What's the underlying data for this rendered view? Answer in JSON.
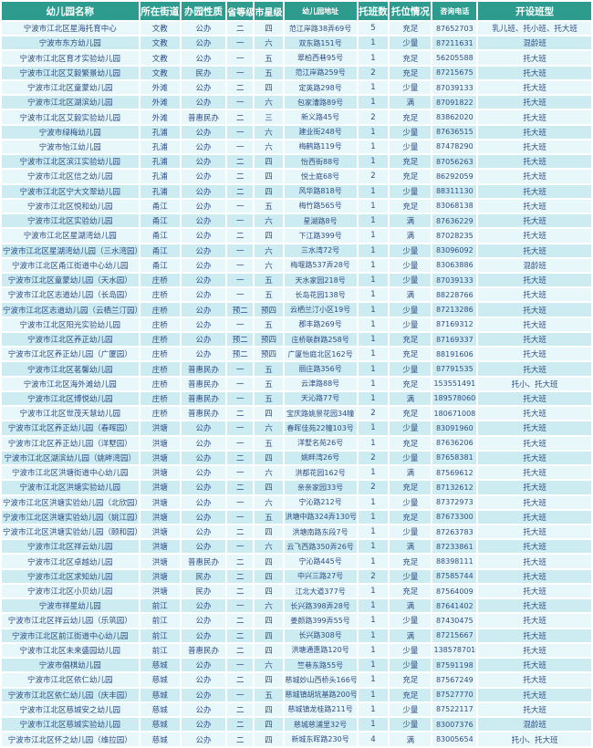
{
  "colors": {
    "header_bg": "#2D9C8E",
    "header_text": "#FFFFFF",
    "row_light": "#E8F7F9",
    "row_dark": "#CDECF1",
    "cell_text": "#2E4E86",
    "grid": "#FFFFFF"
  },
  "table": {
    "columns": [
      {
        "key": "name",
        "label": "幼儿园名称"
      },
      {
        "key": "street",
        "label": "所在街道"
      },
      {
        "key": "type",
        "label": "办园性质"
      },
      {
        "key": "province_grade",
        "label": "省等级"
      },
      {
        "key": "city_star",
        "label": "市星级"
      },
      {
        "key": "address",
        "label": "幼儿园地址"
      },
      {
        "key": "nursery_classes",
        "label": "托班数"
      },
      {
        "key": "slot_status",
        "label": "托位情况"
      },
      {
        "key": "phone",
        "label": "咨询电话"
      },
      {
        "key": "class_types",
        "label": "开设班型"
      }
    ],
    "rows": [
      [
        "宁波市江北区星海托育中心",
        "文教",
        "公办",
        "二",
        "四",
        "范江岸路38弄69号",
        "5",
        "充足",
        "87652703",
        "乳儿班、托小班、托大班"
      ],
      [
        "宁波市东方幼儿园",
        "文教",
        "公办",
        "一",
        "六",
        "双东路151号",
        "1",
        "少量",
        "87211631",
        "混龄班"
      ],
      [
        "宁波市江北区育才实验幼儿园",
        "文教",
        "公办",
        "一",
        "五",
        "翠柏西巷95号",
        "1",
        "充足",
        "56205588",
        "托大班"
      ],
      [
        "宁波市江北区艾毅繁景幼儿园",
        "文教",
        "民办",
        "一",
        "五",
        "范江岸路259号",
        "2",
        "充足",
        "87215675",
        "托大班"
      ],
      [
        "宁波市江北区童蒙幼儿园",
        "外滩",
        "公办",
        "二",
        "四",
        "定英路298号",
        "1",
        "少量",
        "87039133",
        "托大班"
      ],
      [
        "宁波市江北区湖滨幼儿园",
        "外滩",
        "公办",
        "一",
        "六",
        "包家漕路89号",
        "1",
        "满",
        "87091822",
        "托大班"
      ],
      [
        "宁波市江北区艾毅实验幼儿园",
        "外滩",
        "普惠民办",
        "二",
        "三",
        "新义路45号",
        "2",
        "充足",
        "83862020",
        "托大班"
      ],
      [
        "宁波市绿梅幼儿园",
        "孔浦",
        "公办",
        "一",
        "六",
        "建业街248号",
        "1",
        "少量",
        "87636515",
        "托大班"
      ],
      [
        "宁波市怡江幼儿园",
        "孔浦",
        "公办",
        "一",
        "六",
        "梅鹤路119号",
        "1",
        "少量",
        "87478290",
        "托大班"
      ],
      [
        "宁波市江北区滨江实验幼儿园",
        "孔浦",
        "公办",
        "二",
        "四",
        "怡西街88号",
        "1",
        "充足",
        "87056263",
        "托大班"
      ],
      [
        "宁波市江北区信之幼儿园",
        "孔浦",
        "公办",
        "二",
        "四",
        "悦士庭68号",
        "2",
        "充足",
        "86292059",
        "托大班"
      ],
      [
        "宁波市江北区宁大文翠幼儿园",
        "孔浦",
        "公办",
        "二",
        "四",
        "风华路818号",
        "1",
        "少量",
        "88311130",
        "托大班"
      ],
      [
        "宁波市江北区悦和幼儿园",
        "甬江",
        "公办",
        "一",
        "五",
        "梅竹路565号",
        "1",
        "充足",
        "83068138",
        "托大班"
      ],
      [
        "宁波市江北区实验幼儿园",
        "甬江",
        "公办",
        "一",
        "六",
        "星湖路8号",
        "1",
        "满",
        "87636229",
        "托大班"
      ],
      [
        "宁波市江北区星湖湾幼儿园",
        "甬江",
        "公办",
        "二",
        "四",
        "下江路399号",
        "1",
        "满",
        "87028235",
        "托大班"
      ],
      [
        "宁波市江北区星湖湾幼儿园（三水湾园）",
        "甬江",
        "公办",
        "一",
        "六",
        "三水湾72号",
        "1",
        "少量",
        "83096092",
        "托大班"
      ],
      [
        "宁波市江北区甬江街道中心幼儿园",
        "甬江",
        "公办",
        "一",
        "六",
        "梅堰路537弄28号",
        "1",
        "少量",
        "83063886",
        "混龄班"
      ],
      [
        "宁波市江北区童蒙幼儿园（天水园）",
        "庄桥",
        "公办",
        "一",
        "五",
        "天水家园218号",
        "1",
        "少量",
        "87039133",
        "托大班"
      ],
      [
        "宁波市江北区志道幼儿园（长岛园）",
        "庄桥",
        "公办",
        "一",
        "五",
        "长岛花园138号",
        "1",
        "满",
        "88228766",
        "托大班"
      ],
      [
        "宁波市江北区志道幼儿园（云栖兰汀园）",
        "庄桥",
        "公办",
        "预二",
        "预四",
        "云栖兰汀小区19号",
        "1",
        "少量",
        "87213286",
        "托大班"
      ],
      [
        "宁波市江北区阳光实验幼儿园",
        "庄桥",
        "公办",
        "一",
        "五",
        "郡丰路269号",
        "1",
        "少量",
        "87169312",
        "托大班"
      ],
      [
        "宁波市江北区养正幼儿园",
        "庄桥",
        "公办",
        "预二",
        "预四",
        "庄桥联群路258号",
        "1",
        "充足",
        "87169337",
        "托大班"
      ],
      [
        "宁波市江北区养正幼儿园（广厦园）",
        "庄桥",
        "公办",
        "预二",
        "预四",
        "广厦怡庭北区162号",
        "1",
        "充足",
        "88191606",
        "托大班"
      ],
      [
        "宁波市江北区茗馨幼儿园",
        "庄桥",
        "普惠民办",
        "一",
        "五",
        "丽庄路356号",
        "1",
        "少量",
        "87791535",
        "托大班"
      ],
      [
        "宁波市江北区海外滩幼儿园",
        "庄桥",
        "普惠民办",
        "一",
        "五",
        "云津路88号",
        "1",
        "充足",
        "15355149172",
        "托小、托大班"
      ],
      [
        "宁波市江北区博悦幼儿园",
        "庄桥",
        "普惠民办",
        "一",
        "五",
        "天沁路77号",
        "1",
        "满",
        "18957806066",
        "托大班"
      ],
      [
        "宁波市江北区世茂天慧幼儿园",
        "庄桥",
        "普惠民办",
        "二",
        "四",
        "宝庆路姚景花园34幢",
        "2",
        "充足",
        "18067100815",
        "托大班"
      ],
      [
        "宁波市江北区养正幼儿园（春晖园）",
        "洪塘",
        "公办",
        "一",
        "六",
        "春晖佳苑22幢103号",
        "1",
        "少量",
        "83091960",
        "托大班"
      ],
      [
        "宁波市江北区养正幼儿园（洋墅园）",
        "洪塘",
        "公办",
        "一",
        "五",
        "洋墅名苑26号",
        "1",
        "充足",
        "87636206",
        "托大班"
      ],
      [
        "宁波市江北区湖滨幼儿园（姚畔湾园）",
        "洪塘",
        "公办",
        "二",
        "四",
        "姚畔湾26号",
        "2",
        "少量",
        "87658381",
        "托大班"
      ],
      [
        "宁波市江北区洪塘街道中心幼儿园",
        "洪塘",
        "公办",
        "一",
        "六",
        "洪都花园162号",
        "1",
        "满",
        "87569612",
        "托大班"
      ],
      [
        "宁波市江北区洪塘实验幼儿园",
        "洪塘",
        "公办",
        "二",
        "四",
        "亲亲家园33号",
        "2",
        "充足",
        "87132612",
        "托大班"
      ],
      [
        "宁波市江北区洪塘实验幼儿园（北欣园）",
        "洪塘",
        "公办",
        "一",
        "六",
        "宁沁路212号",
        "1",
        "少量",
        "87372973",
        "托大班"
      ],
      [
        "宁波市江北区洪塘实验幼儿园（姚江园）",
        "洪塘",
        "公办",
        "一",
        "五",
        "洪塘中路324弄130号",
        "1",
        "充足",
        "87673300",
        "托大班"
      ],
      [
        "宁波市江北区洪塘实验幼儿园（颐和园）",
        "洪塘",
        "公办",
        "二",
        "四",
        "洪塘南路东段7号",
        "1",
        "少量",
        "87263783",
        "托大班"
      ],
      [
        "宁波市江北区祥云幼儿园",
        "洪塘",
        "公办",
        "一",
        "六",
        "云飞西路350弄26号",
        "1",
        "满",
        "87233861",
        "托大班"
      ],
      [
        "宁波市江北区卓越幼儿园",
        "洪塘",
        "普惠民办",
        "二",
        "四",
        "宁沁路445号",
        "1",
        "充足",
        "88398111",
        "托大班"
      ],
      [
        "宁波市江北区求知幼儿园",
        "洪塘",
        "民办",
        "二",
        "四",
        "中兴三路27号",
        "2",
        "少量",
        "87585744",
        "托大班"
      ],
      [
        "宁波市江北区小贝幼儿园",
        "洪塘",
        "民办",
        "二",
        "四",
        "江北大道377号",
        "1",
        "充足",
        "87564009",
        "托大班"
      ],
      [
        "宁波市祥星幼儿园",
        "前江",
        "公办",
        "一",
        "六",
        "长兴路398弄28号",
        "1",
        "满",
        "87641402",
        "托大班"
      ],
      [
        "宁波市江北区祥云幼儿园（乐筑园）",
        "前江",
        "公办",
        "二",
        "四",
        "姜颜路399弄55号",
        "1",
        "少量",
        "87430475",
        "托大班"
      ],
      [
        "宁波市江北区前江街道中心幼儿园",
        "前江",
        "公办",
        "二",
        "四",
        "长兴路308号",
        "1",
        "满",
        "87215667",
        "托大班"
      ],
      [
        "宁波市江北区未来盛园幼儿园",
        "前江",
        "普惠民办",
        "二",
        "四",
        "洪塘通惠路120号",
        "1",
        "少量",
        "13857870100",
        "托大班"
      ],
      [
        "宁波市倡棋幼儿园",
        "慈城",
        "公办",
        "一",
        "六",
        "竺巷东路55号",
        "1",
        "少量",
        "87591198",
        "托大班"
      ],
      [
        "宁波市江北区依仁幼儿园",
        "慈城",
        "公办",
        "二",
        "四",
        "慈城妙山西桥头166号",
        "1",
        "充足",
        "87567249",
        "托大班"
      ],
      [
        "宁波市江北区依仁幼儿园（庆丰园）",
        "慈城",
        "公办",
        "一",
        "五",
        "慈城镇胡坑基路200号",
        "1",
        "充足",
        "87527770",
        "托大班"
      ],
      [
        "宁波市江北区慈城安之幼儿园",
        "慈城",
        "公办",
        "二",
        "四",
        "慈城镇龙桂路211号",
        "1",
        "少量",
        "87522117",
        "托大班"
      ],
      [
        "宁波市江北区慈城实验幼儿园",
        "慈城",
        "公办",
        "二",
        "四",
        "慈城慈浦里32号",
        "1",
        "少量",
        "83007376",
        "混龄班"
      ],
      [
        "宁波市江北区怀之幼儿园（维拉园）",
        "慈城",
        "公办",
        "二",
        "四",
        "新城东晖路230号",
        "4",
        "满",
        "83005654",
        "托小、托大班"
      ]
    ]
  }
}
